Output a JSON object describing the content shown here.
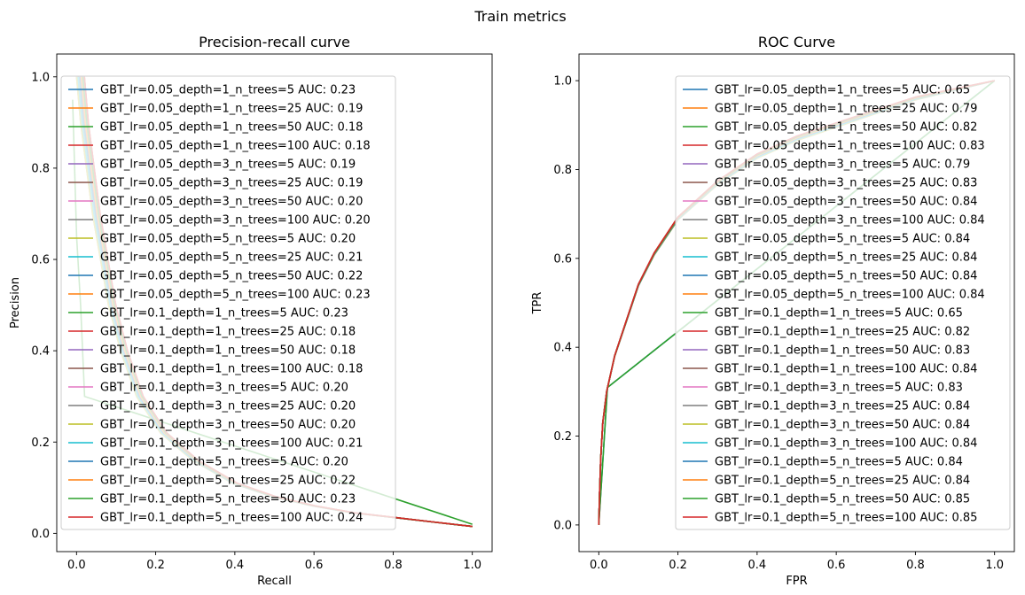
{
  "figure": {
    "title": "Train metrics"
  },
  "colors": [
    "#1f77b4",
    "#ff7f0e",
    "#2ca02c",
    "#d62728",
    "#9467bd",
    "#8c564b",
    "#e377c2",
    "#7f7f7f",
    "#bcbd22",
    "#17becf"
  ],
  "chart_data": [
    {
      "type": "line",
      "title": "Precision-recall curve",
      "xlabel": "Recall",
      "ylabel": "Precision",
      "xlim": [
        -0.05,
        1.05
      ],
      "ylim": [
        -0.04,
        1.05
      ],
      "xticks": [
        "0.0",
        "0.2",
        "0.4",
        "0.6",
        "0.8",
        "1.0"
      ],
      "yticks": [
        "0.0",
        "0.2",
        "0.4",
        "0.6",
        "0.8",
        "1.0"
      ],
      "legend_position": "upper-left",
      "series": [
        {
          "name": "GBT_lr=0.05_depth=1_n_trees=5 AUC: 0.23",
          "family": "gbt"
        },
        {
          "name": "GBT_lr=0.05_depth=1_n_trees=25 AUC: 0.19",
          "family": "gbt"
        },
        {
          "name": "GBT_lr=0.05_depth=1_n_trees=50 AUC: 0.18",
          "family": "gbt"
        },
        {
          "name": "GBT_lr=0.05_depth=1_n_trees=100 AUC: 0.18",
          "family": "gbt"
        },
        {
          "name": "GBT_lr=0.05_depth=3_n_trees=5 AUC: 0.19",
          "family": "gbt"
        },
        {
          "name": "GBT_lr=0.05_depth=3_n_trees=25 AUC: 0.19",
          "family": "gbt"
        },
        {
          "name": "GBT_lr=0.05_depth=3_n_trees=50 AUC: 0.20",
          "family": "gbt"
        },
        {
          "name": "GBT_lr=0.05_depth=3_n_trees=100 AUC: 0.20",
          "family": "gbt"
        },
        {
          "name": "GBT_lr=0.05_depth=5_n_trees=5 AUC: 0.20",
          "family": "gbt"
        },
        {
          "name": "GBT_lr=0.05_depth=5_n_trees=25 AUC: 0.21",
          "family": "gbt"
        },
        {
          "name": "GBT_lr=0.05_depth=5_n_trees=50 AUC: 0.22",
          "family": "gbt"
        },
        {
          "name": "GBT_lr=0.05_depth=5_n_trees=100 AUC: 0.23",
          "family": "gbt"
        },
        {
          "name": "GBT_lr=0.1_depth=1_n_trees=5 AUC: 0.23",
          "family": "stump"
        },
        {
          "name": "GBT_lr=0.1_depth=1_n_trees=25 AUC: 0.18",
          "family": "gbt"
        },
        {
          "name": "GBT_lr=0.1_depth=1_n_trees=50 AUC: 0.18",
          "family": "gbt"
        },
        {
          "name": "GBT_lr=0.1_depth=1_n_trees=100 AUC: 0.18",
          "family": "gbt"
        },
        {
          "name": "GBT_lr=0.1_depth=3_n_trees=5 AUC: 0.20",
          "family": "gbt"
        },
        {
          "name": "GBT_lr=0.1_depth=3_n_trees=25 AUC: 0.20",
          "family": "gbt"
        },
        {
          "name": "GBT_lr=0.1_depth=3_n_trees=50 AUC: 0.20",
          "family": "gbt"
        },
        {
          "name": "GBT_lr=0.1_depth=3_n_trees=100 AUC: 0.21",
          "family": "gbt"
        },
        {
          "name": "GBT_lr=0.1_depth=5_n_trees=5 AUC: 0.20",
          "family": "gbt"
        },
        {
          "name": "GBT_lr=0.1_depth=5_n_trees=25 AUC: 0.22",
          "family": "gbt"
        },
        {
          "name": "GBT_lr=0.1_depth=5_n_trees=50 AUC: 0.23",
          "family": "gbt"
        },
        {
          "name": "GBT_lr=0.1_depth=5_n_trees=100 AUC: 0.24",
          "family": "gbt"
        }
      ],
      "curve_points": {
        "gbt": [
          [
            1.0,
            0.015
          ],
          [
            0.9,
            0.025
          ],
          [
            0.8,
            0.035
          ],
          [
            0.7,
            0.045
          ],
          [
            0.6,
            0.06
          ],
          [
            0.5,
            0.08
          ],
          [
            0.4,
            0.11
          ],
          [
            0.3,
            0.16
          ],
          [
            0.22,
            0.22
          ],
          [
            0.16,
            0.3
          ],
          [
            0.12,
            0.4
          ],
          [
            0.09,
            0.5
          ],
          [
            0.07,
            0.6
          ],
          [
            0.05,
            0.7
          ],
          [
            0.035,
            0.8
          ],
          [
            0.02,
            0.9
          ],
          [
            0.01,
            1.0
          ]
        ],
        "stump": [
          [
            1.0,
            0.02
          ],
          [
            0.03,
            0.3
          ],
          [
            0.02,
            0.5
          ],
          [
            0.01,
            0.65
          ],
          [
            0.0,
            0.95
          ]
        ]
      }
    },
    {
      "type": "line",
      "title": "ROC Curve",
      "xlabel": "FPR",
      "ylabel": "TPR",
      "xlim": [
        -0.05,
        1.05
      ],
      "ylim": [
        -0.06,
        1.06
      ],
      "xticks": [
        "0.0",
        "0.2",
        "0.4",
        "0.6",
        "0.8",
        "1.0"
      ],
      "yticks": [
        "0.0",
        "0.2",
        "0.4",
        "0.6",
        "0.8",
        "1.0"
      ],
      "legend_position": "upper-right",
      "series": [
        {
          "name": "GBT_lr=0.05_depth=1_n_trees=5 AUC: 0.65",
          "family": "stump"
        },
        {
          "name": "GBT_lr=0.05_depth=1_n_trees=25 AUC: 0.79",
          "family": "gbt"
        },
        {
          "name": "GBT_lr=0.05_depth=1_n_trees=50 AUC: 0.82",
          "family": "gbt"
        },
        {
          "name": "GBT_lr=0.05_depth=1_n_trees=100 AUC: 0.83",
          "family": "gbt"
        },
        {
          "name": "GBT_lr=0.05_depth=3_n_trees=5 AUC: 0.79",
          "family": "gbt"
        },
        {
          "name": "GBT_lr=0.05_depth=3_n_trees=25 AUC: 0.83",
          "family": "gbt"
        },
        {
          "name": "GBT_lr=0.05_depth=3_n_trees=50 AUC: 0.84",
          "family": "gbt"
        },
        {
          "name": "GBT_lr=0.05_depth=3_n_trees=100 AUC: 0.84",
          "family": "gbt"
        },
        {
          "name": "GBT_lr=0.05_depth=5_n_trees=5 AUC: 0.84",
          "family": "gbt"
        },
        {
          "name": "GBT_lr=0.05_depth=5_n_trees=25 AUC: 0.84",
          "family": "gbt"
        },
        {
          "name": "GBT_lr=0.05_depth=5_n_trees=50 AUC: 0.84",
          "family": "gbt"
        },
        {
          "name": "GBT_lr=0.05_depth=5_n_trees=100 AUC: 0.84",
          "family": "gbt"
        },
        {
          "name": "GBT_lr=0.1_depth=1_n_trees=5 AUC: 0.65",
          "family": "stump"
        },
        {
          "name": "GBT_lr=0.1_depth=1_n_trees=25 AUC: 0.82",
          "family": "gbt"
        },
        {
          "name": "GBT_lr=0.1_depth=1_n_trees=50 AUC: 0.83",
          "family": "gbt"
        },
        {
          "name": "GBT_lr=0.1_depth=1_n_trees=100 AUC: 0.84",
          "family": "gbt"
        },
        {
          "name": "GBT_lr=0.1_depth=3_n_trees=5 AUC: 0.83",
          "family": "gbt"
        },
        {
          "name": "GBT_lr=0.1_depth=3_n_trees=25 AUC: 0.84",
          "family": "gbt"
        },
        {
          "name": "GBT_lr=0.1_depth=3_n_trees=50 AUC: 0.84",
          "family": "gbt"
        },
        {
          "name": "GBT_lr=0.1_depth=3_n_trees=100 AUC: 0.84",
          "family": "gbt"
        },
        {
          "name": "GBT_lr=0.1_depth=5_n_trees=5 AUC: 0.84",
          "family": "gbt"
        },
        {
          "name": "GBT_lr=0.1_depth=5_n_trees=25 AUC: 0.84",
          "family": "gbt"
        },
        {
          "name": "GBT_lr=0.1_depth=5_n_trees=50 AUC: 0.85",
          "family": "gbt"
        },
        {
          "name": "GBT_lr=0.1_depth=5_n_trees=100 AUC: 0.85",
          "family": "gbt"
        }
      ],
      "curve_points": {
        "gbt": [
          [
            0.0,
            0.0
          ],
          [
            0.002,
            0.07
          ],
          [
            0.005,
            0.15
          ],
          [
            0.01,
            0.23
          ],
          [
            0.02,
            0.3
          ],
          [
            0.04,
            0.38
          ],
          [
            0.07,
            0.46
          ],
          [
            0.1,
            0.54
          ],
          [
            0.14,
            0.61
          ],
          [
            0.2,
            0.69
          ],
          [
            0.3,
            0.77
          ],
          [
            0.4,
            0.83
          ],
          [
            0.5,
            0.87
          ],
          [
            0.6,
            0.9
          ],
          [
            0.7,
            0.93
          ],
          [
            0.8,
            0.96
          ],
          [
            0.9,
            0.98
          ],
          [
            1.0,
            1.0
          ]
        ],
        "stump": [
          [
            0.0,
            0.0
          ],
          [
            0.022,
            0.31
          ],
          [
            1.0,
            1.0
          ]
        ]
      }
    }
  ]
}
